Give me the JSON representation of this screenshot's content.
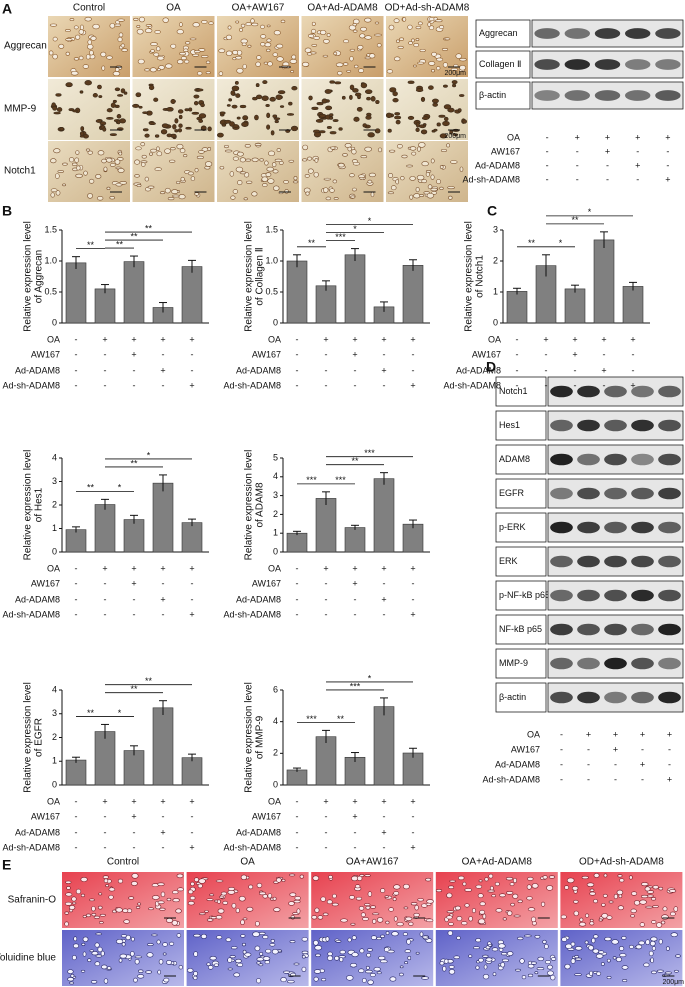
{
  "panel_a": {
    "letter": "A",
    "columns": [
      "Control",
      "OA",
      "OA+AW167",
      "OA+Ad-ADAM8",
      "OD+Ad-sh-ADAM8"
    ],
    "rows": [
      "Aggrecan",
      "MMP-9",
      "Notch1"
    ],
    "scale_bar": "200μm",
    "blot": {
      "bands": [
        "Aggrecan",
        "Collagen Ⅱ",
        "β-actin"
      ],
      "treatments": [
        {
          "name": "OA",
          "signs": [
            "-",
            "+",
            "+",
            "+",
            "+"
          ]
        },
        {
          "name": "AW167",
          "signs": [
            "-",
            "-",
            "+",
            "-",
            "-"
          ]
        },
        {
          "name": "Ad-ADAM8",
          "signs": [
            "-",
            "-",
            "-",
            "+",
            "-"
          ]
        },
        {
          "name": "Ad-sh-ADAM8",
          "signs": [
            "-",
            "-",
            "-",
            "-",
            "+"
          ]
        }
      ]
    }
  },
  "panel_b": {
    "letter": "B"
  },
  "panel_c": {
    "letter": "C"
  },
  "panel_d": {
    "letter": "D",
    "bands": [
      "Notch1",
      "Hes1",
      "ADAM8",
      "EGFR",
      "p-ERK",
      "ERK",
      "p-NF-kB p65",
      "NF-kB p65",
      "MMP-9",
      "β-actin"
    ],
    "treatments": [
      {
        "name": "OA",
        "signs": [
          "-",
          "+",
          "+",
          "+",
          "+"
        ]
      },
      {
        "name": "AW167",
        "signs": [
          "-",
          "-",
          "+",
          "-",
          "-"
        ]
      },
      {
        "name": "Ad-ADAM8",
        "signs": [
          "-",
          "-",
          "-",
          "+",
          "-"
        ]
      },
      {
        "name": "Ad-sh-ADAM8",
        "signs": [
          "-",
          "-",
          "-",
          "-",
          "+"
        ]
      }
    ]
  },
  "panel_e": {
    "letter": "E",
    "columns": [
      "Control",
      "OA",
      "OA+AW167",
      "OA+Ad-ADAM8",
      "OD+Ad-sh-ADAM8"
    ],
    "rows": [
      "Safranin-O",
      "Toluidine blue"
    ],
    "scale_bar": "200μm"
  },
  "chart_data": [
    {
      "type": "bar",
      "y_label": [
        "Relative expression level",
        "of Aggrecan"
      ],
      "color": "#808080",
      "values": [
        0.97,
        0.55,
        0.99,
        0.25,
        0.91
      ],
      "errors": [
        0.1,
        0.07,
        0.09,
        0.08,
        0.1
      ],
      "ylim": [
        0,
        1.5
      ],
      "yticks": [
        0,
        0.5,
        {
          "value": 1,
          "label": "1.0"
        },
        1.5
      ],
      "significance": [
        {
          "pair": [
            0,
            1
          ],
          "label": "**"
        },
        {
          "pair": [
            1,
            2
          ],
          "label": "**"
        },
        {
          "pair": [
            1,
            3
          ],
          "label": "**"
        },
        {
          "pair": [
            1,
            4
          ],
          "label": "**"
        }
      ],
      "treatments": [
        {
          "name": "OA",
          "signs": [
            "-",
            "+",
            "+",
            "+",
            "+"
          ]
        },
        {
          "name": "AW167",
          "signs": [
            "-",
            "-",
            "+",
            "-",
            "-"
          ]
        },
        {
          "name": "Ad-ADAM8",
          "signs": [
            "-",
            "-",
            "-",
            "+",
            "-"
          ]
        },
        {
          "name": "Ad-sh-ADAM8",
          "signs": [
            "-",
            "-",
            "-",
            "-",
            "+"
          ]
        }
      ]
    },
    {
      "type": "bar",
      "y_label": [
        "Relative expression level",
        "of Collagen Ⅱ"
      ],
      "color": "#808080",
      "values": [
        1.0,
        0.6,
        1.1,
        0.26,
        0.93
      ],
      "errors": [
        0.1,
        0.08,
        0.1,
        0.08,
        0.09
      ],
      "ylim": [
        0,
        1.5
      ],
      "yticks": [
        0,
        0.5,
        {
          "value": 1,
          "label": "1.0"
        },
        1.5
      ],
      "significance": [
        {
          "pair": [
            0,
            1
          ],
          "label": "**"
        },
        {
          "pair": [
            1,
            2
          ],
          "label": "***"
        },
        {
          "pair": [
            1,
            3
          ],
          "label": "*"
        },
        {
          "pair": [
            1,
            4
          ],
          "label": "*"
        }
      ],
      "treatments": [
        {
          "name": "OA",
          "signs": [
            "-",
            "+",
            "+",
            "+",
            "+"
          ]
        },
        {
          "name": "AW167",
          "signs": [
            "-",
            "-",
            "+",
            "-",
            "-"
          ]
        },
        {
          "name": "Ad-ADAM8",
          "signs": [
            "-",
            "-",
            "-",
            "+",
            "-"
          ]
        },
        {
          "name": "Ad-sh-ADAM8",
          "signs": [
            "-",
            "-",
            "-",
            "-",
            "+"
          ]
        }
      ]
    },
    {
      "type": "bar",
      "y_label": [
        "Relative expression level",
        "of Notch1"
      ],
      "color": "#808080",
      "values": [
        1.02,
        1.85,
        1.1,
        2.68,
        1.18
      ],
      "errors": [
        0.1,
        0.35,
        0.12,
        0.26,
        0.13
      ],
      "ylim": [
        0,
        3
      ],
      "yticks": [
        0,
        1,
        2,
        3
      ],
      "significance": [
        {
          "pair": [
            0,
            1
          ],
          "label": "**"
        },
        {
          "pair": [
            1,
            2
          ],
          "label": "*"
        },
        {
          "pair": [
            1,
            3
          ],
          "label": "**"
        },
        {
          "pair": [
            1,
            4
          ],
          "label": "*"
        }
      ],
      "treatments": [
        {
          "name": "OA",
          "signs": [
            "-",
            "+",
            "+",
            "+",
            "+"
          ]
        },
        {
          "name": "AW167",
          "signs": [
            "-",
            "-",
            "+",
            "-",
            "-"
          ]
        },
        {
          "name": "Ad-ADAM8",
          "signs": [
            "-",
            "-",
            "-",
            "+",
            "-"
          ]
        },
        {
          "name": "Ad-sh-ADAM8",
          "signs": [
            "-",
            "-",
            "-",
            "-",
            "+"
          ]
        }
      ]
    },
    {
      "type": "bar",
      "y_label": [
        "Relative expression level",
        "of Hes1"
      ],
      "color": "#808080",
      "values": [
        0.95,
        2.02,
        1.38,
        2.93,
        1.25
      ],
      "errors": [
        0.12,
        0.22,
        0.18,
        0.35,
        0.15
      ],
      "ylim": [
        0,
        4
      ],
      "yticks": [
        0,
        1,
        2,
        3,
        4
      ],
      "significance": [
        {
          "pair": [
            0,
            1
          ],
          "label": "**"
        },
        {
          "pair": [
            1,
            2
          ],
          "label": "*"
        },
        {
          "pair": [
            1,
            3
          ],
          "label": "**"
        },
        {
          "pair": [
            1,
            4
          ],
          "label": "*"
        }
      ],
      "treatments": [
        {
          "name": "OA",
          "signs": [
            "-",
            "+",
            "+",
            "+",
            "+"
          ]
        },
        {
          "name": "AW167",
          "signs": [
            "-",
            "-",
            "+",
            "-",
            "-"
          ]
        },
        {
          "name": "Ad-ADAM8",
          "signs": [
            "-",
            "-",
            "-",
            "+",
            "-"
          ]
        },
        {
          "name": "Ad-sh-ADAM8",
          "signs": [
            "-",
            "-",
            "-",
            "-",
            "+"
          ]
        }
      ]
    },
    {
      "type": "bar",
      "y_label": [
        "Relative expression level",
        "of ADAM8"
      ],
      "color": "#808080",
      "values": [
        1.0,
        2.85,
        1.3,
        3.9,
        1.48
      ],
      "errors": [
        0.1,
        0.35,
        0.12,
        0.32,
        0.22
      ],
      "ylim": [
        0,
        5
      ],
      "yticks": [
        0,
        1,
        2,
        3,
        4,
        5
      ],
      "significance": [
        {
          "pair": [
            0,
            1
          ],
          "label": "***"
        },
        {
          "pair": [
            1,
            2
          ],
          "label": "***"
        },
        {
          "pair": [
            1,
            3
          ],
          "label": "**"
        },
        {
          "pair": [
            1,
            4
          ],
          "label": "***"
        }
      ],
      "treatments": [
        {
          "name": "OA",
          "signs": [
            "-",
            "+",
            "+",
            "+",
            "+"
          ]
        },
        {
          "name": "AW167",
          "signs": [
            "-",
            "-",
            "+",
            "-",
            "-"
          ]
        },
        {
          "name": "Ad-ADAM8",
          "signs": [
            "-",
            "-",
            "-",
            "+",
            "-"
          ]
        },
        {
          "name": "Ad-sh-ADAM8",
          "signs": [
            "-",
            "-",
            "-",
            "-",
            "+"
          ]
        }
      ]
    },
    {
      "type": "bar",
      "y_label": [
        "Relative expression level",
        "of EGFR"
      ],
      "color": "#808080",
      "values": [
        1.05,
        2.25,
        1.45,
        3.25,
        1.15
      ],
      "errors": [
        0.12,
        0.3,
        0.2,
        0.3,
        0.15
      ],
      "ylim": [
        0,
        4
      ],
      "yticks": [
        0,
        1,
        2,
        3,
        4
      ],
      "significance": [
        {
          "pair": [
            0,
            1
          ],
          "label": "**"
        },
        {
          "pair": [
            1,
            2
          ],
          "label": "*"
        },
        {
          "pair": [
            1,
            3
          ],
          "label": "**"
        },
        {
          "pair": [
            1,
            4
          ],
          "label": "**"
        }
      ],
      "treatments": [
        {
          "name": "OA",
          "signs": [
            "-",
            "+",
            "+",
            "+",
            "+"
          ]
        },
        {
          "name": "AW167",
          "signs": [
            "-",
            "-",
            "+",
            "-",
            "-"
          ]
        },
        {
          "name": "Ad-ADAM8",
          "signs": [
            "-",
            "-",
            "-",
            "+",
            "-"
          ]
        },
        {
          "name": "Ad-sh-ADAM8",
          "signs": [
            "-",
            "-",
            "-",
            "-",
            "+"
          ]
        }
      ]
    },
    {
      "type": "bar",
      "y_label": [
        "Relative expression level",
        "of MMP-9"
      ],
      "color": "#808080",
      "values": [
        0.95,
        3.05,
        1.75,
        4.95,
        2.02
      ],
      "errors": [
        0.12,
        0.4,
        0.3,
        0.55,
        0.3
      ],
      "ylim": [
        0,
        6
      ],
      "yticks": [
        0,
        2,
        4,
        6
      ],
      "significance": [
        {
          "pair": [
            0,
            1
          ],
          "label": "***"
        },
        {
          "pair": [
            1,
            2
          ],
          "label": "**"
        },
        {
          "pair": [
            1,
            3
          ],
          "label": "***"
        },
        {
          "pair": [
            1,
            4
          ],
          "label": "*"
        }
      ],
      "treatments": [
        {
          "name": "OA",
          "signs": [
            "-",
            "+",
            "+",
            "+",
            "+"
          ]
        },
        {
          "name": "AW167",
          "signs": [
            "-",
            "-",
            "+",
            "-",
            "-"
          ]
        },
        {
          "name": "Ad-ADAM8",
          "signs": [
            "-",
            "-",
            "-",
            "+",
            "-"
          ]
        },
        {
          "name": "Ad-sh-ADAM8",
          "signs": [
            "-",
            "-",
            "-",
            "-",
            "+"
          ]
        }
      ]
    }
  ]
}
